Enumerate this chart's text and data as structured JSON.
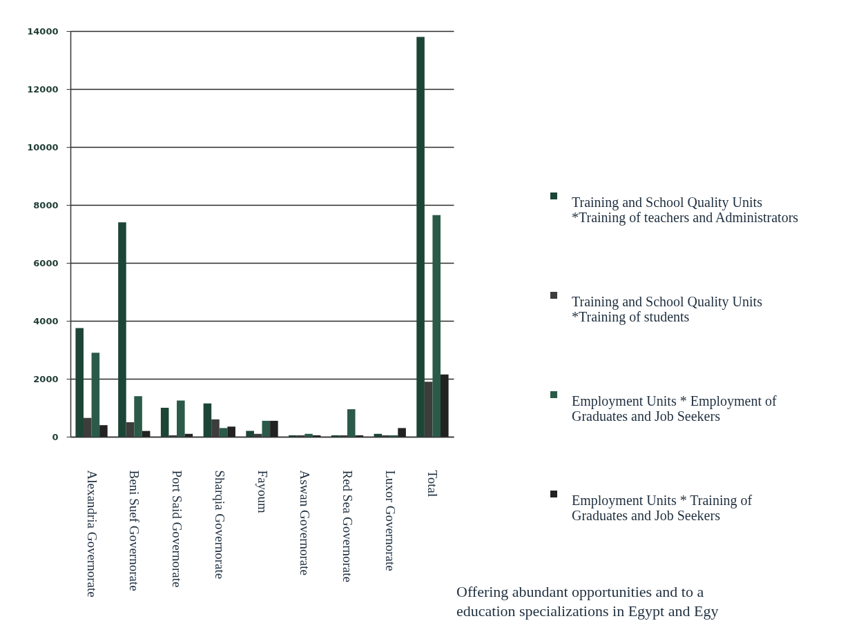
{
  "chart_data": {
    "type": "bar",
    "categories": [
      "Alexandria Governorate",
      "Beni Suef Governorate",
      "Port Said Governorate",
      "Sharqia Governorate",
      "Fayoum",
      "Aswan Governorate",
      "Red Sea Governorate",
      "Luxor Governorate",
      "Total"
    ],
    "series": [
      {
        "name": "Training and School Quality Units *Training of teachers and Administrators",
        "color": "#1c4536",
        "values": [
          3750,
          7400,
          1000,
          1150,
          200,
          50,
          50,
          100,
          13800
        ]
      },
      {
        "name": "Training and School Quality Units *Training of students",
        "color": "#3d3d3d",
        "values": [
          650,
          500,
          50,
          600,
          100,
          50,
          50,
          50,
          1900
        ]
      },
      {
        "name": "Employment Units * Employment of Graduates and Job Seekers",
        "color": "#2b5a48",
        "values": [
          2900,
          1400,
          1250,
          300,
          550,
          100,
          950,
          50,
          7650
        ]
      },
      {
        "name": "Employment Units * Training of Graduates and Job Seekers",
        "color": "#222222",
        "values": [
          400,
          200,
          100,
          350,
          550,
          50,
          50,
          300,
          2150
        ]
      }
    ],
    "ylim": [
      0,
      14000
    ],
    "yticks": [
      0,
      2000,
      4000,
      6000,
      8000,
      10000,
      12000,
      14000
    ],
    "grid": "y",
    "legend": "right",
    "annotations": [
      "Offering abundant opportunities and to a",
      "education specializations in Egypt and Egy"
    ]
  }
}
